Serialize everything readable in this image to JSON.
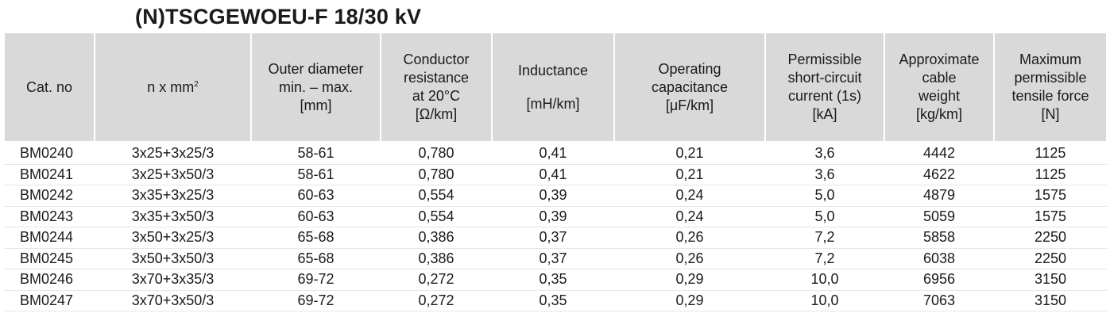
{
  "title": "(N)TSCGEWOEU-F 18/30 kV",
  "table": {
    "headers": {
      "cat_no": "Cat. no",
      "nxmm_base": "n x mm",
      "nxmm_sup": "2",
      "outer_diameter": [
        "Outer diameter",
        "min. – max.",
        "[mm]"
      ],
      "conductor_resistance": [
        "Conductor",
        "resistance",
        "at 20°C",
        "[Ω/km]"
      ],
      "inductance": [
        "Inductance",
        "[mH/km]"
      ],
      "operating_capacitance": [
        "Operating",
        "capacitance",
        "[μF/km]"
      ],
      "short_circuit_current": [
        "Permissible",
        "short-circuit",
        "current (1s)",
        "[kA]"
      ],
      "cable_weight": [
        "Approximate",
        "cable",
        "weight",
        "[kg/km]"
      ],
      "tensile_force": [
        "Maximum",
        "permissible",
        "tensile force",
        "[N]"
      ]
    },
    "rows": [
      [
        "BM0240",
        "3x25+3x25/3",
        "58-61",
        "0,780",
        "0,41",
        "0,21",
        "3,6",
        "4442",
        "1125"
      ],
      [
        "BM0241",
        "3x25+3x50/3",
        "58-61",
        "0,780",
        "0,41",
        "0,21",
        "3,6",
        "4622",
        "1125"
      ],
      [
        "BM0242",
        "3x35+3x25/3",
        "60-63",
        "0,554",
        "0,39",
        "0,24",
        "5,0",
        "4879",
        "1575"
      ],
      [
        "BM0243",
        "3x35+3x50/3",
        "60-63",
        "0,554",
        "0,39",
        "0,24",
        "5,0",
        "5059",
        "1575"
      ],
      [
        "BM0244",
        "3x50+3x25/3",
        "65-68",
        "0,386",
        "0,37",
        "0,26",
        "7,2",
        "5858",
        "2250"
      ],
      [
        "BM0245",
        "3x50+3x50/3",
        "65-68",
        "0,386",
        "0,37",
        "0,26",
        "7,2",
        "6038",
        "2250"
      ],
      [
        "BM0246",
        "3x70+3x35/3",
        "69-72",
        "0,272",
        "0,35",
        "0,29",
        "10,0",
        "6956",
        "3150"
      ],
      [
        "BM0247",
        "3x70+3x50/3",
        "69-72",
        "0,272",
        "0,35",
        "0,29",
        "10,0",
        "7063",
        "3150"
      ]
    ]
  }
}
